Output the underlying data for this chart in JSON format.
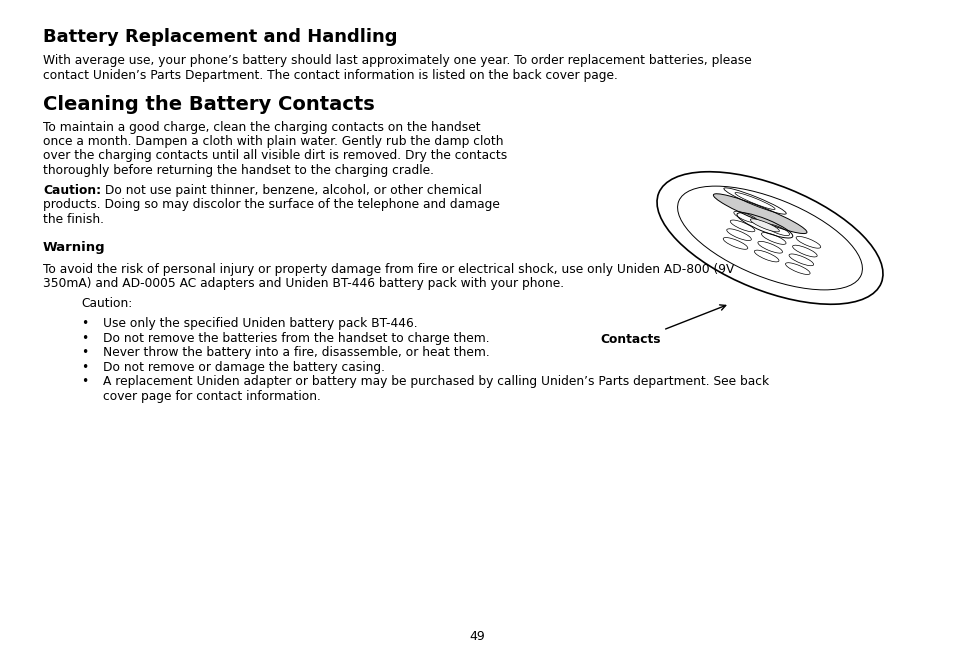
{
  "bg_color": "#ffffff",
  "text_color": "#000000",
  "page_number": "49",
  "title1": "Battery Replacement and Handling",
  "para1_line1": "With average use, your phone’s battery should last approximately one year. To order replacement batteries, please",
  "para1_line2": "contact Uniden’s Parts Department. The contact information is listed on the back cover page.",
  "title2": "Cleaning the Battery Contacts",
  "para2_line1": "To maintain a good charge, clean the charging contacts on the handset",
  "para2_line2": "once a month. Dampen a cloth with plain water. Gently rub the damp cloth",
  "para2_line3": "over the charging contacts until all visible dirt is removed. Dry the contacts",
  "para2_line4": "thoroughly before returning the handset to the charging cradle.",
  "caution_label": "Caution:",
  "caution_line1": " Do not use paint thinner, benzene, alcohol, or other chemical",
  "caution_line2": "products. Doing so may discolor the surface of the telephone and damage",
  "caution_line3": "the finish.",
  "contacts_label": "Contacts",
  "warning_title": "Warning",
  "warning_line1": "To avoid the risk of personal injury or property damage from fire or electrical shock, use only Uniden AD-800 (9V",
  "warning_line2": "350mA) and AD-0005 AC adapters and Uniden BT-446 battery pack with your phone.",
  "caution2_label": "Caution:",
  "bullet_items": [
    "Use only the specified Uniden battery pack BT-446.",
    "Do not remove the batteries from the handset to charge them.",
    "Never throw the battery into a fire, disassemble, or heat them.",
    "Do not remove or damage the battery casing.",
    "A replacement Uniden adapter or battery may be purchased by calling Uniden’s Parts department. See back",
    "cover page for contact information."
  ],
  "font_size_title1": 13,
  "font_size_title2": 14,
  "font_size_body": 8.8,
  "font_size_warning": 9.5,
  "font_size_page": 9
}
